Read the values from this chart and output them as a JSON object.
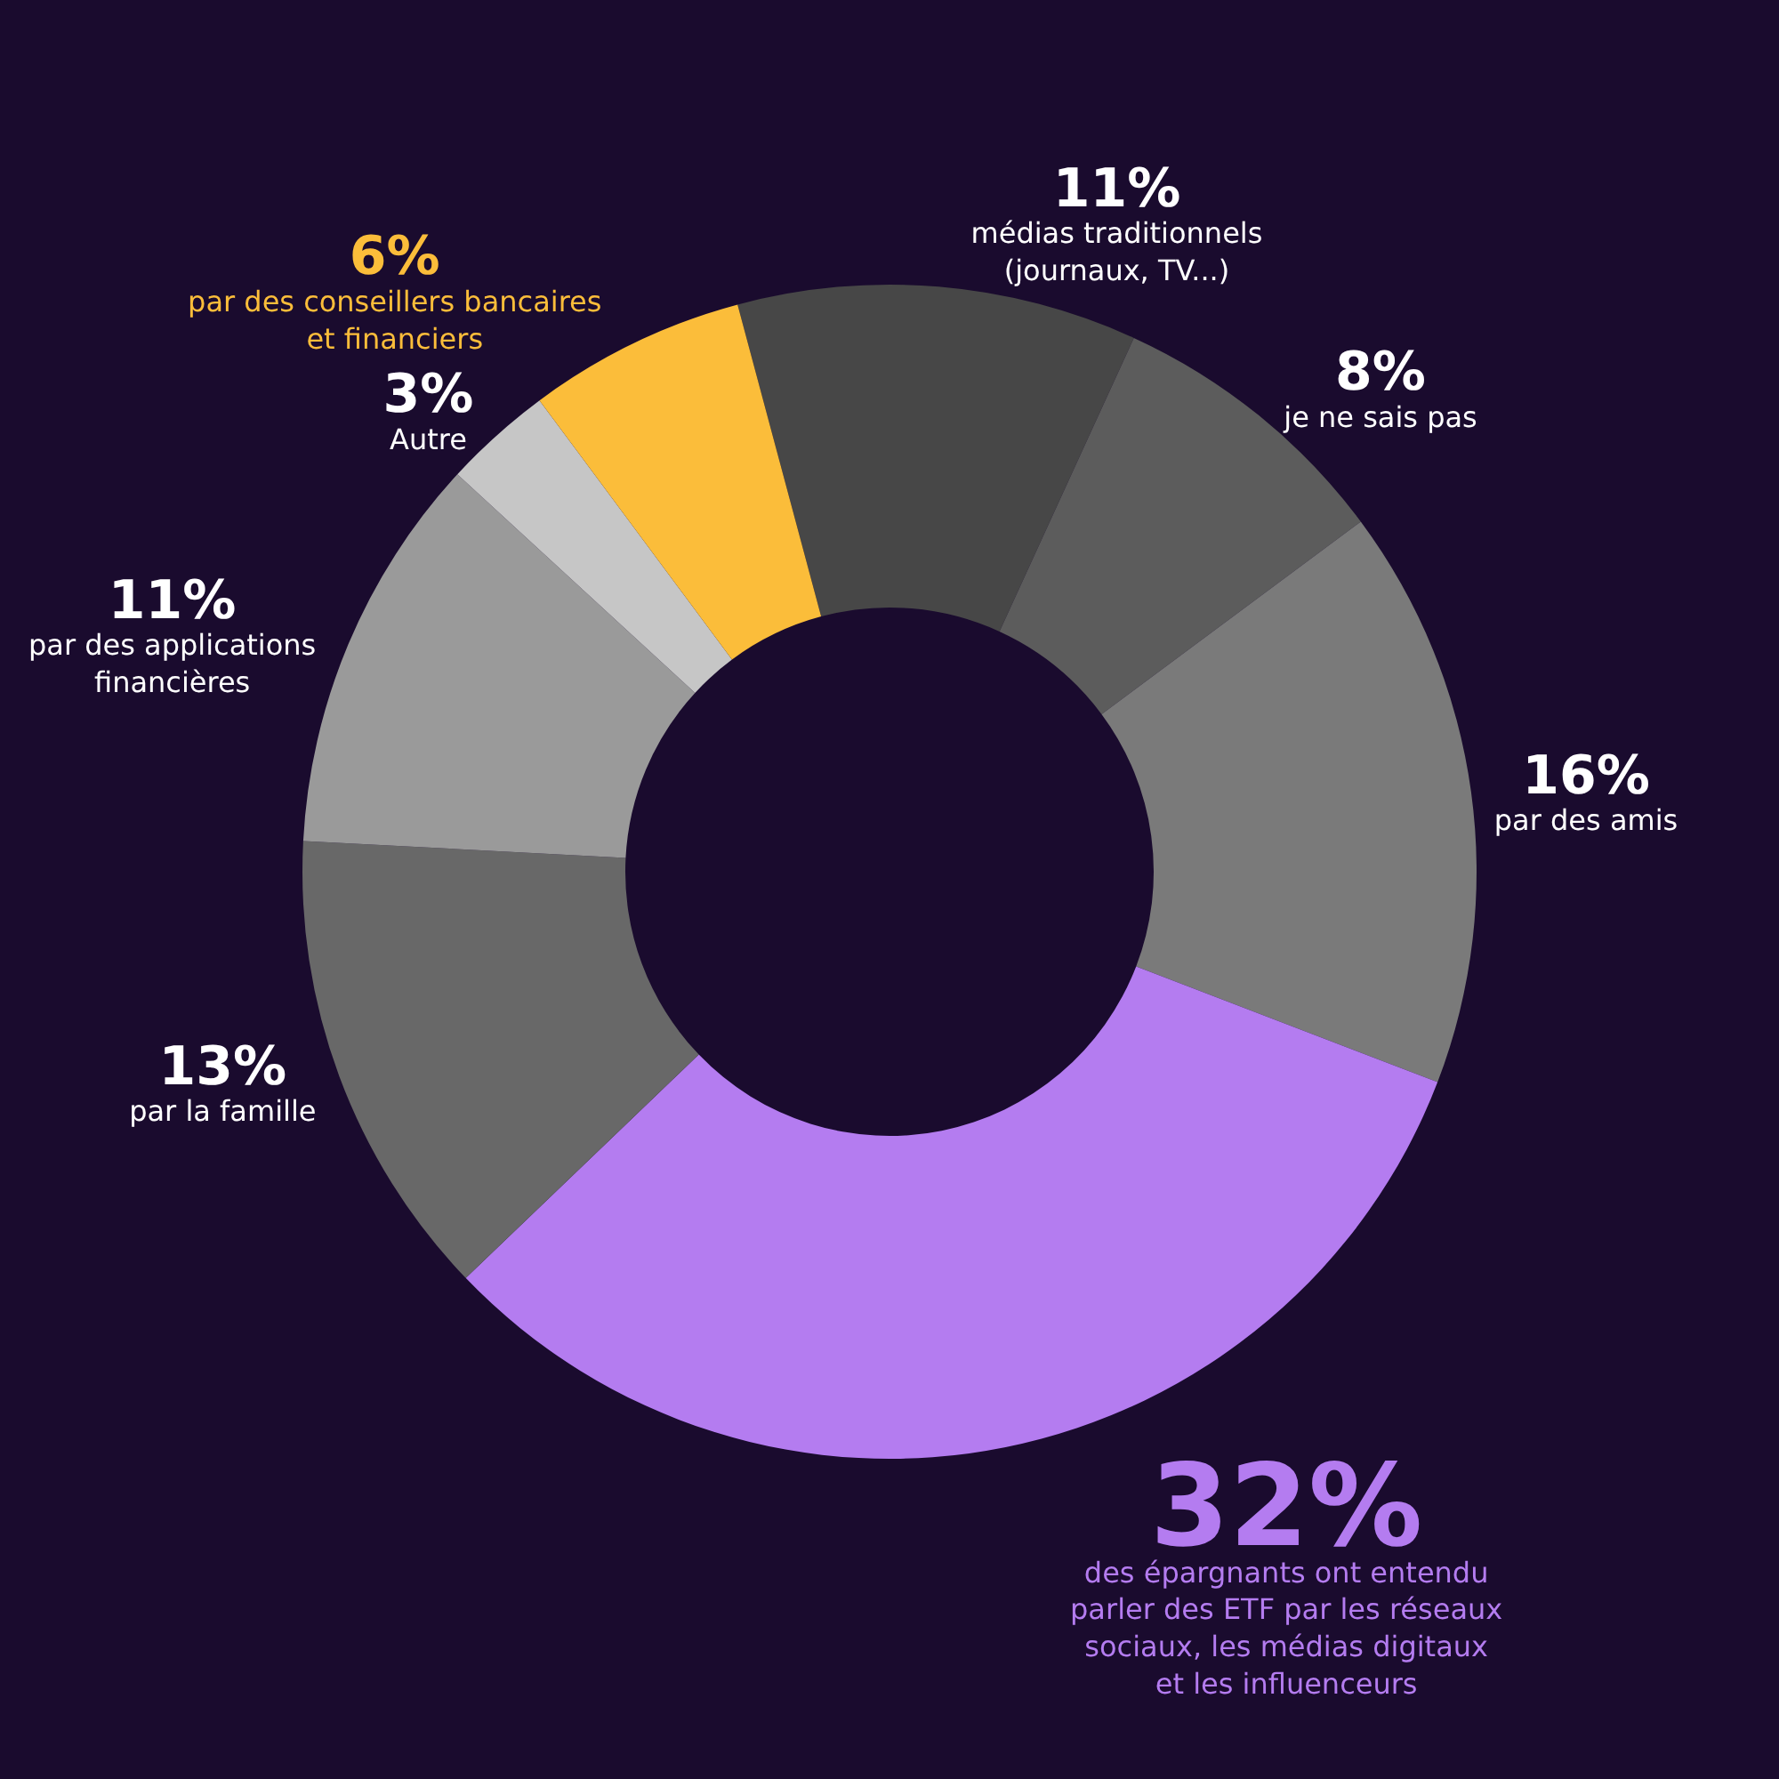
{
  "chart_data": {
    "type": "donut",
    "categories": [
      "médias traditionnels (journaux, TV...)",
      "je ne sais pas",
      "par des amis",
      "des épargnants ont entendu parler des ETF par les réseaux sociaux, les médias digitaux et les influenceurs",
      "par la famille",
      "par des applications financières",
      "Autre",
      "par des conseillers bancaires et financiers"
    ],
    "values": [
      11,
      8,
      16,
      32,
      13,
      11,
      3,
      6
    ],
    "value_labels": [
      "11%",
      "8%",
      "16%",
      "32%",
      "13%",
      "11%",
      "3%",
      "6%"
    ],
    "colors": [
      "#474747",
      "#5c5c5c",
      "#7a7a7a",
      "#b47cf0",
      "#686868",
      "#9a9a9a",
      "#c6c6c6",
      "#fbbd3a"
    ],
    "legend": false
  }
}
